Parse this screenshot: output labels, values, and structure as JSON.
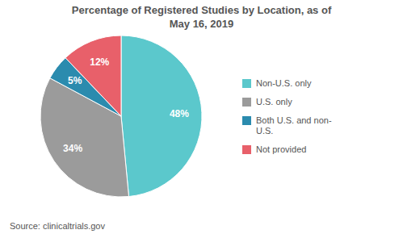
{
  "chart_data": {
    "type": "pie",
    "title": "Percentage of Registered Studies by Location, as of\nMay 16, 2019",
    "categories": [
      "Non-U.S. only",
      "U.S. only",
      "Both U.S. and non-\nU.S.",
      "Not provided"
    ],
    "values": [
      48,
      34,
      5,
      12
    ],
    "value_labels": [
      "48%",
      "34%",
      "5%",
      "12%"
    ],
    "data_labels": true,
    "colors": [
      "#5BC8CC",
      "#9B9B9B",
      "#2B8BAE",
      "#E8606A"
    ],
    "legend": "right",
    "annotations": [
      "Source: clinicaltrials.gov"
    ]
  }
}
